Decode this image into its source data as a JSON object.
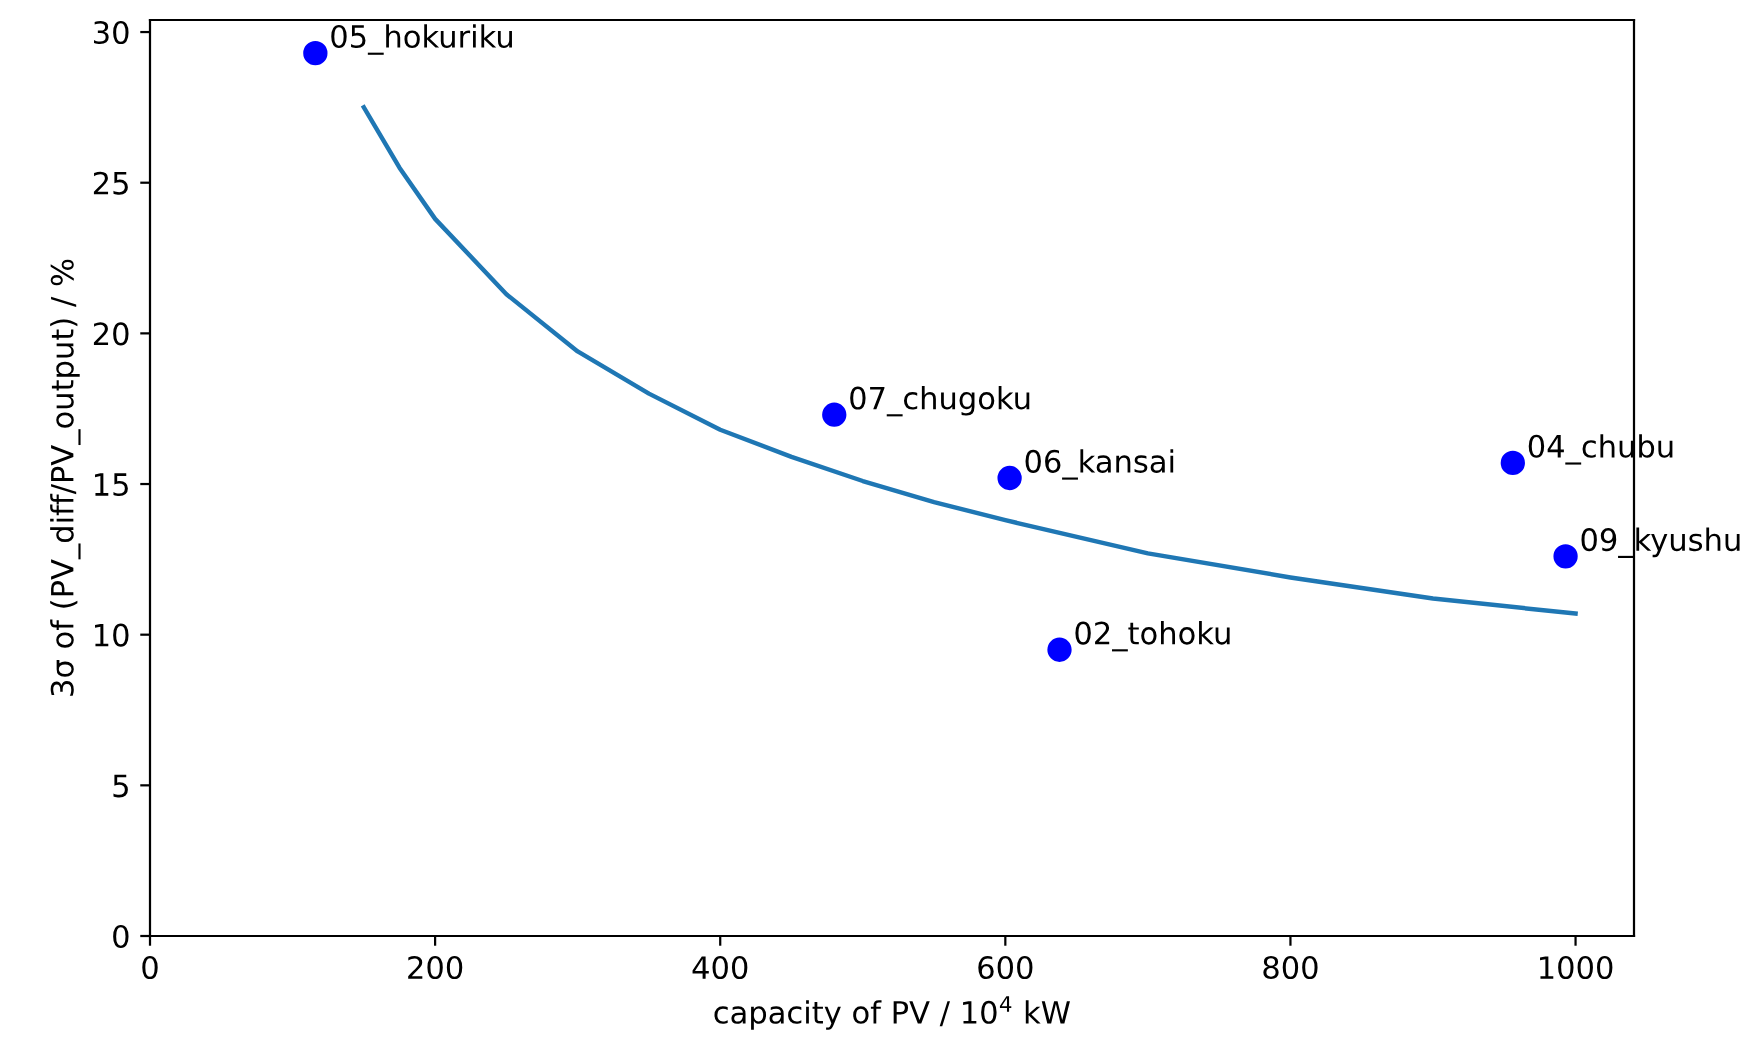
{
  "chart_data": {
    "type": "scatter",
    "xlabel": "capacity of PV / 10$^{4}$ kW",
    "ylabel": "3σ of (PV_diff/PV_output) / %",
    "series": [
      {
        "color": "#0000ff",
        "x": [
          116,
          480,
          603,
          638,
          956,
          993
        ],
        "values": [
          29.3,
          17.3,
          15.2,
          9.5,
          15.7,
          12.6
        ]
      },
      {
        "type": "line",
        "color": "#1f77b4",
        "x": [
          150,
          175,
          200,
          250,
          300,
          350,
          400,
          450,
          500,
          550,
          600,
          700,
          800,
          900,
          1000
        ],
        "values": [
          27.5,
          25.5,
          23.8,
          21.3,
          19.4,
          18.0,
          16.8,
          15.9,
          15.1,
          14.4,
          13.8,
          12.7,
          11.9,
          11.2,
          10.7
        ]
      }
    ],
    "annotations": [
      {
        "text": "05_hokuriku",
        "x": 116,
        "y": 29.3
      },
      {
        "text": "07_chugoku",
        "x": 480,
        "y": 17.3
      },
      {
        "text": "06_kansai",
        "x": 603,
        "y": 15.2
      },
      {
        "text": "02_tohoku",
        "x": 638,
        "y": 9.5
      },
      {
        "text": "04_chubu",
        "x": 956,
        "y": 15.7
      },
      {
        "text": "09_kyushu",
        "x": 993,
        "y": 12.6
      }
    ],
    "xlim": [
      0,
      1041
    ],
    "ylim": [
      0,
      30.4
    ],
    "xticks": [
      0,
      200,
      400,
      600,
      800,
      1000
    ],
    "yticks": [
      0,
      5,
      10,
      15,
      20,
      25,
      30
    ],
    "grid": false,
    "legend": false
  }
}
